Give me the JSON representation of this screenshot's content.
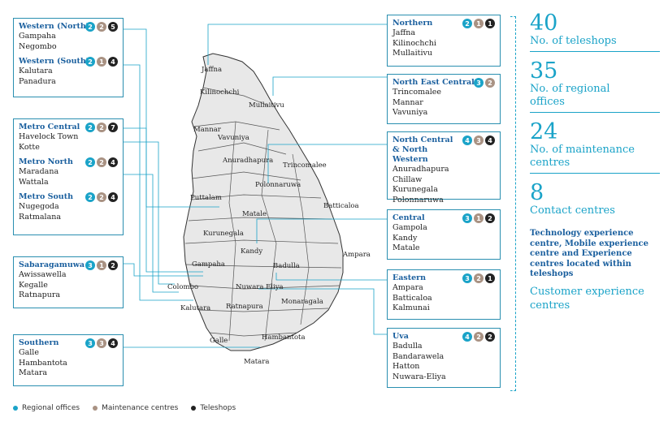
{
  "colors": {
    "regional": "#1aa3c8",
    "maintenance": "#a99283",
    "teleshop": "#222222",
    "accent": "#1a5f9e"
  },
  "left_boxes": [
    {
      "regions": [
        {
          "name": "Western (North)",
          "counts": [
            "2",
            "2",
            "5"
          ],
          "towns": [
            "Gampaha",
            "Negombo"
          ]
        },
        {
          "name": "Western (South)",
          "counts": [
            "2",
            "1",
            "4"
          ],
          "towns": [
            "Kalutara",
            "Panadura"
          ]
        }
      ]
    },
    {
      "regions": [
        {
          "name": "Metro Central",
          "counts": [
            "2",
            "2",
            "7"
          ],
          "towns": [
            "Havelock Town",
            "Kotte"
          ]
        },
        {
          "name": "Metro North",
          "counts": [
            "2",
            "2",
            "4"
          ],
          "towns": [
            "Maradana",
            "Wattala"
          ]
        },
        {
          "name": "Metro South",
          "counts": [
            "2",
            "2",
            "4"
          ],
          "towns": [
            "Nugegoda",
            "Ratmalana"
          ]
        }
      ]
    },
    {
      "regions": [
        {
          "name": "Sabaragamuwa",
          "counts": [
            "3",
            "1",
            "2"
          ],
          "towns": [
            "Awissawella",
            "Kegalle",
            "Ratnapura"
          ]
        }
      ]
    },
    {
      "regions": [
        {
          "name": "Southern",
          "counts": [
            "3",
            "3",
            "4"
          ],
          "towns": [
            "Galle",
            "Hambantota",
            "Matara"
          ]
        }
      ]
    }
  ],
  "right_boxes": [
    {
      "regions": [
        {
          "name": "Northern",
          "counts": [
            "2",
            "1",
            "1"
          ],
          "towns": [
            "Jaffna",
            "Kilinochchi",
            "Mullaitivu"
          ]
        }
      ]
    },
    {
      "regions": [
        {
          "name": "North East Central",
          "counts": [
            "3",
            "2"
          ],
          "towns": [
            "Trincomalee",
            "Mannar",
            "Vavuniya"
          ]
        }
      ]
    },
    {
      "regions": [
        {
          "name": "North Central & North Western",
          "counts": [
            "4",
            "3",
            "4"
          ],
          "towns": [
            "Anuradhapura",
            "Chillaw",
            "Kurunegala",
            "Polonnaruwa"
          ]
        }
      ]
    },
    {
      "regions": [
        {
          "name": "Central",
          "counts": [
            "3",
            "1",
            "2"
          ],
          "towns": [
            "Gampola",
            "Kandy",
            "Matale"
          ]
        }
      ]
    },
    {
      "regions": [
        {
          "name": "Eastern",
          "counts": [
            "3",
            "2",
            "1"
          ],
          "towns": [
            "Ampara",
            "Batticaloa",
            "Kalmunai"
          ]
        }
      ]
    },
    {
      "regions": [
        {
          "name": "Uva",
          "counts": [
            "4",
            "2",
            "2"
          ],
          "towns": [
            "Badulla",
            "Bandarawela",
            "Hatton",
            "Nuwara-Eliya"
          ]
        }
      ]
    }
  ],
  "map_labels": [
    "Jaffna",
    "Kilinochchi",
    "Mullaitivu",
    "Mannar",
    "Vavuniya",
    "Anuradhapura",
    "Trincomalee",
    "Polonnaruwa",
    "Puttalam",
    "Batticaloa",
    "Matale",
    "Kurunegala",
    "Kandy",
    "Ampara",
    "Gampaha",
    "Badulla",
    "Colombo",
    "Nuwara Eliya",
    "Monaragala",
    "Ratnapura",
    "Kalutara",
    "Galle",
    "Hambantota",
    "Matara"
  ],
  "stats": [
    {
      "value": "40",
      "label": "No. of teleshops"
    },
    {
      "value": "35",
      "label": "No. of regional offices"
    },
    {
      "value": "24",
      "label": "No. of maintenance centres"
    },
    {
      "value": "8",
      "label": "Contact centres"
    }
  ],
  "note": "Technology experience centre, Mobile experience centre and Experience centres located within teleshops",
  "customer_centres": "Customer experience centres",
  "legend": {
    "regional": "Regional offices",
    "maintenance": "Maintenance centres",
    "teleshops": "Teleshops"
  }
}
